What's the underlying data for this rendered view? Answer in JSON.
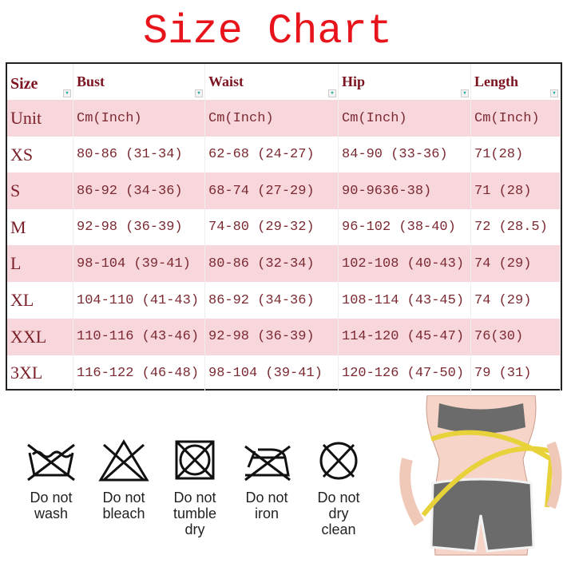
{
  "title": "Size Chart",
  "table": {
    "headers": [
      "Size",
      "Bust",
      "Waist",
      "Hip",
      "Length"
    ],
    "rows": [
      [
        "Unit",
        "Cm(Inch)",
        "Cm(Inch)",
        "Cm(Inch)",
        "Cm(Inch)"
      ],
      [
        "XS",
        "80-86 (31-34)",
        "62-68 (24-27)",
        "84-90 (33-36)",
        "71(28)"
      ],
      [
        "S",
        "86-92 (34-36)",
        "68-74 (27-29)",
        "90-9636-38)",
        "71 (28)"
      ],
      [
        "M",
        "92-98 (36-39)",
        "74-80 (29-32)",
        "96-102 (38-40)",
        "72 (28.5)"
      ],
      [
        "L",
        "98-104 (39-41)",
        "80-86 (32-34)",
        "102-108 (40-43)",
        "74 (29)"
      ],
      [
        "XL",
        "104-110 (41-43)",
        "86-92 (34-36)",
        "108-114 (43-45)",
        "74 (29)"
      ],
      [
        "XXL",
        "110-116 (43-46)",
        "92-98 (36-39)",
        "114-120 (45-47)",
        "76(30)"
      ],
      [
        "3XL",
        "116-122 (46-48)",
        "98-104 (39-41)",
        "120-126 (47-50)",
        "79 (31)"
      ]
    ]
  },
  "care": [
    {
      "icon": "do-not-wash-icon",
      "lines": [
        "Do not",
        "wash"
      ]
    },
    {
      "icon": "do-not-bleach-icon",
      "lines": [
        "Do not",
        "bleach"
      ]
    },
    {
      "icon": "do-not-tumble-dry-icon",
      "lines": [
        "Do not",
        "tumble",
        "dry"
      ]
    },
    {
      "icon": "do-not-iron-icon",
      "lines": [
        "Do not",
        "iron"
      ]
    },
    {
      "icon": "do-not-dry-clean-icon",
      "lines": [
        "Do not",
        "dry",
        "clean"
      ]
    }
  ],
  "colors": {
    "title": "#e8141c",
    "text": "#7b2a32",
    "row_pink": "#f7d6dc"
  }
}
